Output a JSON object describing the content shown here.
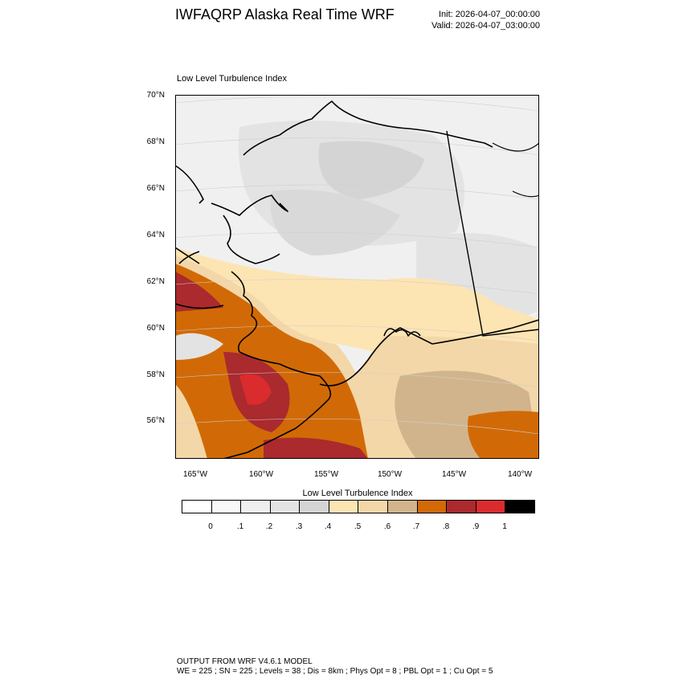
{
  "header": {
    "title": "IWFAQRP Alaska Real Time WRF",
    "init": "Init: 2026-04-07_00:00:00",
    "valid": "Valid: 2026-04-07_03:00:00"
  },
  "map": {
    "subtitle": "Low Level Turbulence Index",
    "lat_labels": [
      "70°N",
      "68°N",
      "66°N",
      "64°N",
      "62°N",
      "60°N",
      "58°N",
      "56°N"
    ],
    "lon_labels": [
      "165°W",
      "160°W",
      "155°W",
      "150°W",
      "145°W",
      "140°W"
    ]
  },
  "colorbar": {
    "title": "Low Level Turbulence Index",
    "colors": [
      "#ffffff",
      "#f8f8f8",
      "#efefef",
      "#e3e3e3",
      "#d4d4d4",
      "#fde4b3",
      "#f3d7a8",
      "#d2b48c",
      "#d16a06",
      "#aa2a2e",
      "#da2b2f",
      "#000000"
    ],
    "labels": [
      "0",
      ".1",
      ".2",
      ".3",
      ".4",
      ".5",
      ".6",
      ".7",
      ".8",
      ".9",
      "1"
    ]
  },
  "footer": {
    "line1": "OUTPUT FROM WRF V4.6.1 MODEL",
    "line2": "WE = 225 ; SN = 225 ; Levels = 38 ; Dis = 8km ; Phys Opt = 8 ; PBL Opt = 1 ; Cu Opt = 5"
  }
}
